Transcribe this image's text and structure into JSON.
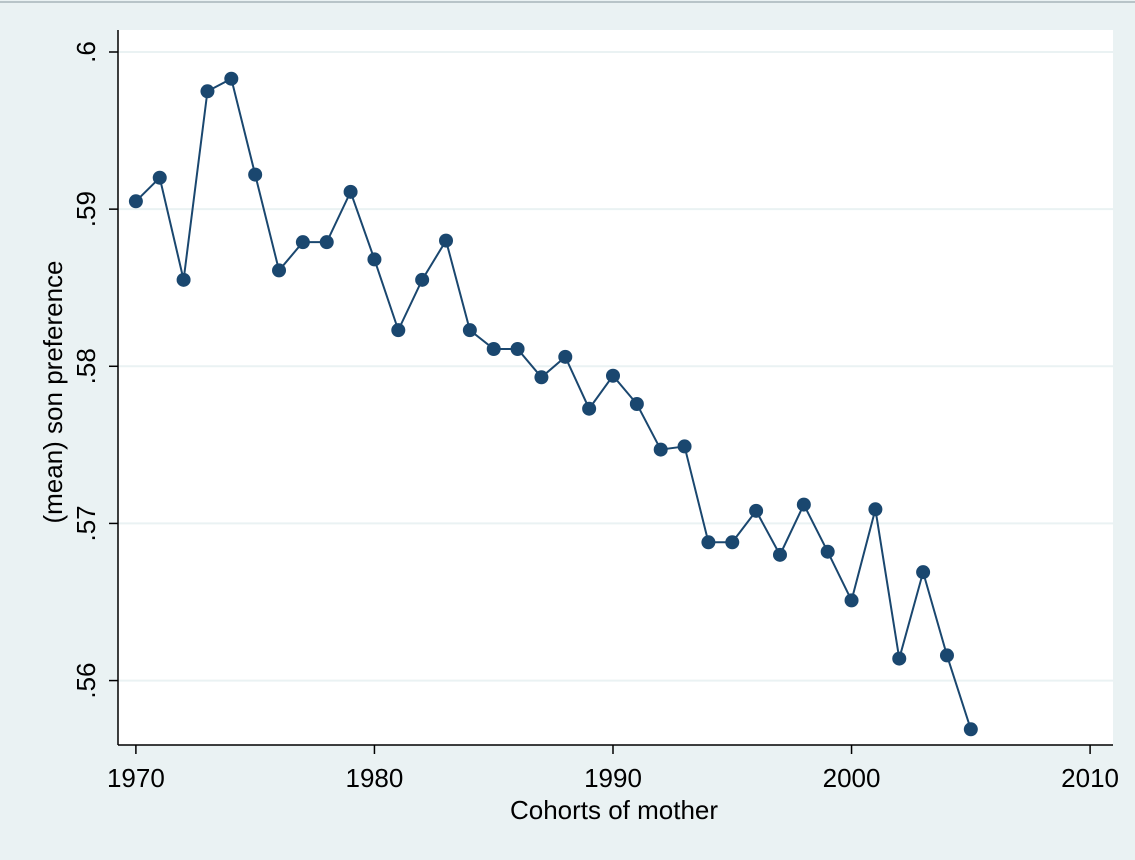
{
  "chart_data": {
    "type": "line",
    "x_label": "Cohorts of mother",
    "y_label": "(mean) son preference",
    "x": [
      1970,
      1971,
      1972,
      1973,
      1974,
      1975,
      1976,
      1977,
      1978,
      1979,
      1980,
      1981,
      1982,
      1983,
      1984,
      1985,
      1986,
      1987,
      1988,
      1989,
      1990,
      1991,
      1992,
      1993,
      1994,
      1995,
      1996,
      1997,
      1998,
      1999,
      2000,
      2001,
      2002,
      2003,
      2004,
      2005
    ],
    "series": [
      {
        "color": "#1a476f",
        "values": [
          0.5905,
          0.592,
          0.5855,
          0.5975,
          0.5983,
          0.5922,
          0.5861,
          0.5879,
          0.5879,
          0.5911,
          0.5868,
          0.5823,
          0.5855,
          0.588,
          0.5823,
          0.5811,
          0.5811,
          0.5793,
          0.5806,
          0.5773,
          0.5794,
          0.5776,
          0.5747,
          0.5749,
          0.5688,
          0.5688,
          0.5708,
          0.568,
          0.5712,
          0.5682,
          0.5651,
          0.5709,
          0.5614,
          0.5669,
          0.5616,
          0.5569
        ]
      }
    ],
    "xlim": [
      1969.25,
      2010.96
    ],
    "ylim": [
      0.5559,
      0.6014
    ],
    "xticks": [
      1970,
      1980,
      1990,
      2000,
      2010
    ],
    "yticks": [
      {
        "value": 0.56,
        "label": ".56"
      },
      {
        "value": 0.57,
        "label": ".57"
      },
      {
        "value": 0.58,
        "label": ".58"
      },
      {
        "value": 0.59,
        "label": ".59"
      },
      {
        "value": 0.6,
        "label": ".6"
      }
    ],
    "grid": true
  }
}
